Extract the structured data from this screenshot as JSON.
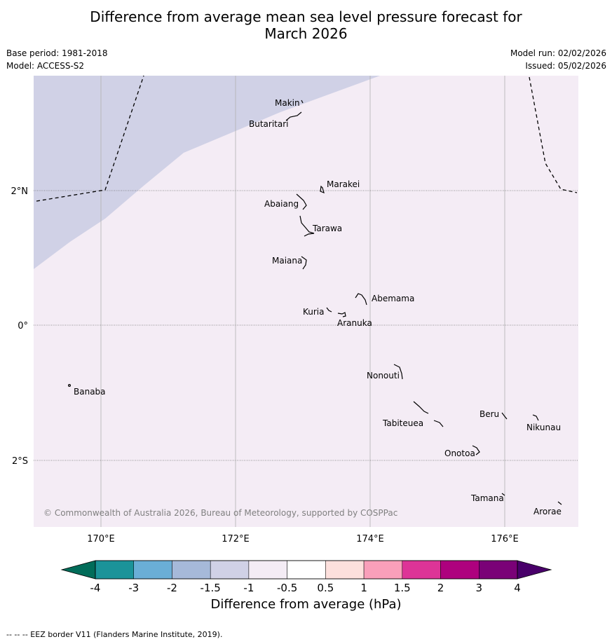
{
  "header": {
    "title_line1": "Difference from average mean sea level pressure forecast for",
    "title_line2": "March 2026",
    "base_period": "Base period: 1981-2018",
    "model": "Model: ACCESS-S2",
    "model_run": "Model run: 02/02/2026",
    "issued": "Issued: 05/02/2026"
  },
  "map": {
    "lon_ticks": [
      "170°E",
      "172°E",
      "174°E",
      "176°E"
    ],
    "lat_ticks": [
      "2°N",
      "0°",
      "2°S"
    ],
    "copyright": "© Commonwealth of Australia 2026, Bureau of Meteorology, supported by COSPPac",
    "islands": [
      {
        "name": "Makin"
      },
      {
        "name": "Butaritari"
      },
      {
        "name": "Marakei"
      },
      {
        "name": "Abaiang"
      },
      {
        "name": "Tarawa"
      },
      {
        "name": "Maiana"
      },
      {
        "name": "Abemama"
      },
      {
        "name": "Kuria"
      },
      {
        "name": "Aranuka"
      },
      {
        "name": "Banaba"
      },
      {
        "name": "Nonouti"
      },
      {
        "name": "Tabiteuea"
      },
      {
        "name": "Beru"
      },
      {
        "name": "Nikunau"
      },
      {
        "name": "Onotoa"
      },
      {
        "name": "Tamana"
      },
      {
        "name": "Arorae"
      }
    ],
    "colors": {
      "region_minus_1_to_minus_1_5": "#d0d1e6",
      "region_minus_0_5_to_minus_1": "#f4ecf5"
    }
  },
  "colorbar": {
    "label": "Difference from average (hPa)",
    "ticks": [
      "-4",
      "-3",
      "-2",
      "-1.5",
      "-1",
      "-0.5",
      "0.5",
      "1",
      "1.5",
      "2",
      "3",
      "4"
    ],
    "colors": [
      "#1b9399",
      "#6aaed6",
      "#a6b9d9",
      "#d0d1e6",
      "#f4ecf5",
      "#ffffff",
      "#fde0dd",
      "#f99fba",
      "#dd3497",
      "#ae017e",
      "#7a0177"
    ],
    "under_color": "#016c59",
    "over_color": "#49006a"
  },
  "footer": {
    "eez_note": "--  --  -- EEZ border V11 (Flanders Marine Institute, 2019)."
  }
}
